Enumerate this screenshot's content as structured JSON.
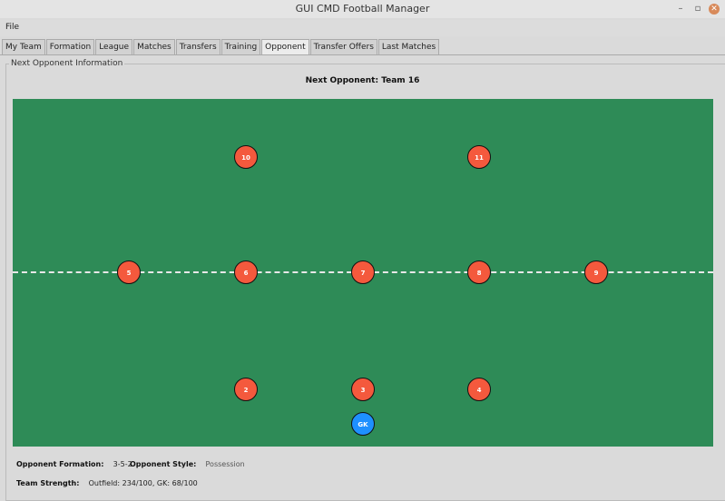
{
  "window": {
    "title": "GUI CMD Football Manager"
  },
  "menu": {
    "file": "File"
  },
  "tabs": [
    "My Team",
    "Formation",
    "League",
    "Matches",
    "Transfers",
    "Training",
    "Opponent",
    "Transfer Offers",
    "Last Matches"
  ],
  "active_tab": "Opponent",
  "group_label": "Next Opponent Information",
  "next_opponent": "Next Opponent: Team 16",
  "pitch": {
    "color": "#2e8b57",
    "players": [
      "10",
      "11",
      "5",
      "6",
      "7",
      "8",
      "9",
      "2",
      "3",
      "4",
      "GK"
    ],
    "outfield_color": "#f4593d",
    "gk_color": "#1e90ff"
  },
  "info": {
    "formation_label": "Opponent Formation:",
    "formation": "3-5-2",
    "style_label": "Opponent Style:",
    "style": "Possession",
    "strength_label": "Team Strength:",
    "strength": "Outfield: 234/100, GK: 68/100"
  }
}
